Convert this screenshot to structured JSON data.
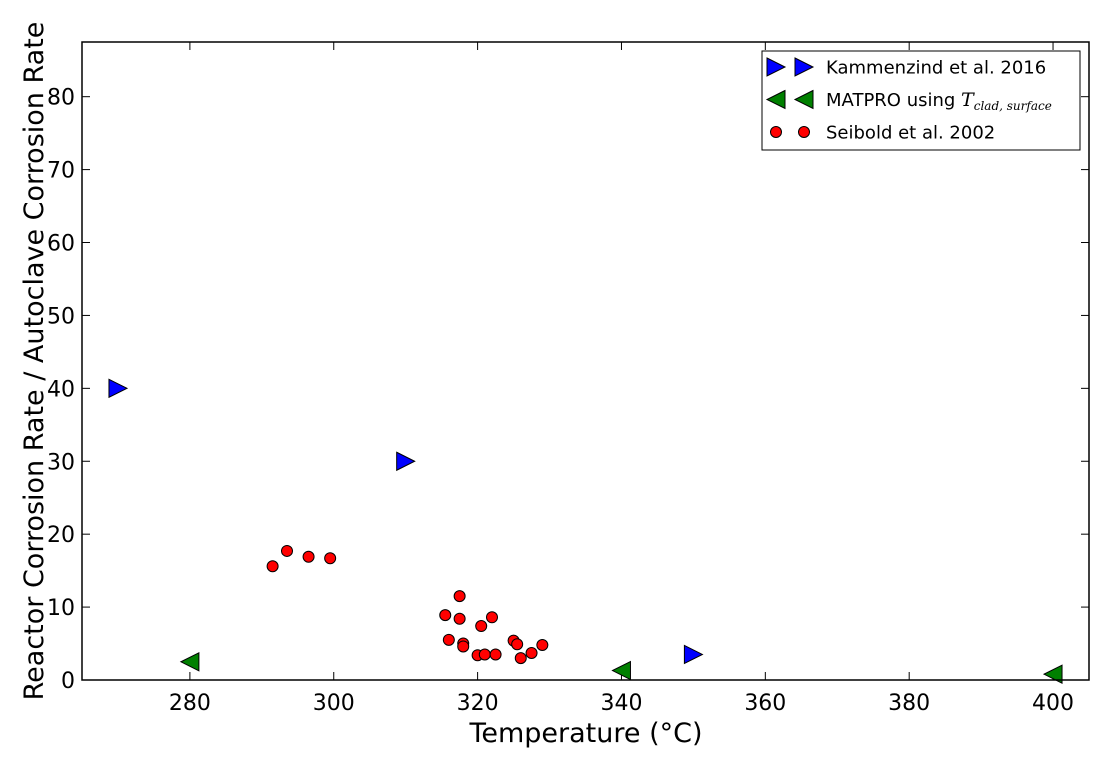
{
  "chart_data": {
    "type": "scatter",
    "xlabel": "Temperature (°C)",
    "ylabel": "Reactor Corrosion Rate / Autoclave Corrosion Rate",
    "xlim": [
      265,
      405
    ],
    "ylim": [
      0,
      87.5
    ],
    "x_ticks": [
      280,
      300,
      320,
      340,
      360,
      380,
      400
    ],
    "y_ticks": [
      0,
      10,
      20,
      30,
      40,
      50,
      60,
      70,
      80
    ],
    "grid": false,
    "legend_position": "top-right",
    "series": [
      {
        "name": "Kammenzind et al. 2016",
        "marker": "triangle-right",
        "color": "#0000ff",
        "points": [
          [
            270,
            40
          ],
          [
            310,
            30
          ],
          [
            350,
            3.5
          ]
        ]
      },
      {
        "name": "MATPRO using T_{clad, surface}",
        "legend_text": "MATPRO using ",
        "legend_math_T": "T",
        "legend_math_sub": "clad, surface",
        "marker": "triangle-left",
        "color": "#008000",
        "points": [
          [
            280,
            2.5
          ],
          [
            340,
            1.3
          ],
          [
            400,
            0.8
          ]
        ]
      },
      {
        "name": "Seibold et al. 2002",
        "marker": "circle",
        "color": "#ff0000",
        "points": [
          [
            291.5,
            15.6
          ],
          [
            293.5,
            17.7
          ],
          [
            296.5,
            16.9
          ],
          [
            299.5,
            16.7
          ],
          [
            315.5,
            8.9
          ],
          [
            316,
            5.5
          ],
          [
            317.5,
            11.5
          ],
          [
            317.5,
            8.4
          ],
          [
            318,
            5
          ],
          [
            318,
            4.6
          ],
          [
            320,
            3.4
          ],
          [
            320.5,
            7.4
          ],
          [
            321,
            3.5
          ],
          [
            322,
            8.6
          ],
          [
            322.5,
            3.5
          ],
          [
            325,
            5.4
          ],
          [
            325.5,
            4.9
          ],
          [
            326,
            3
          ],
          [
            327.5,
            3.7
          ],
          [
            329,
            4.8
          ]
        ]
      }
    ]
  }
}
